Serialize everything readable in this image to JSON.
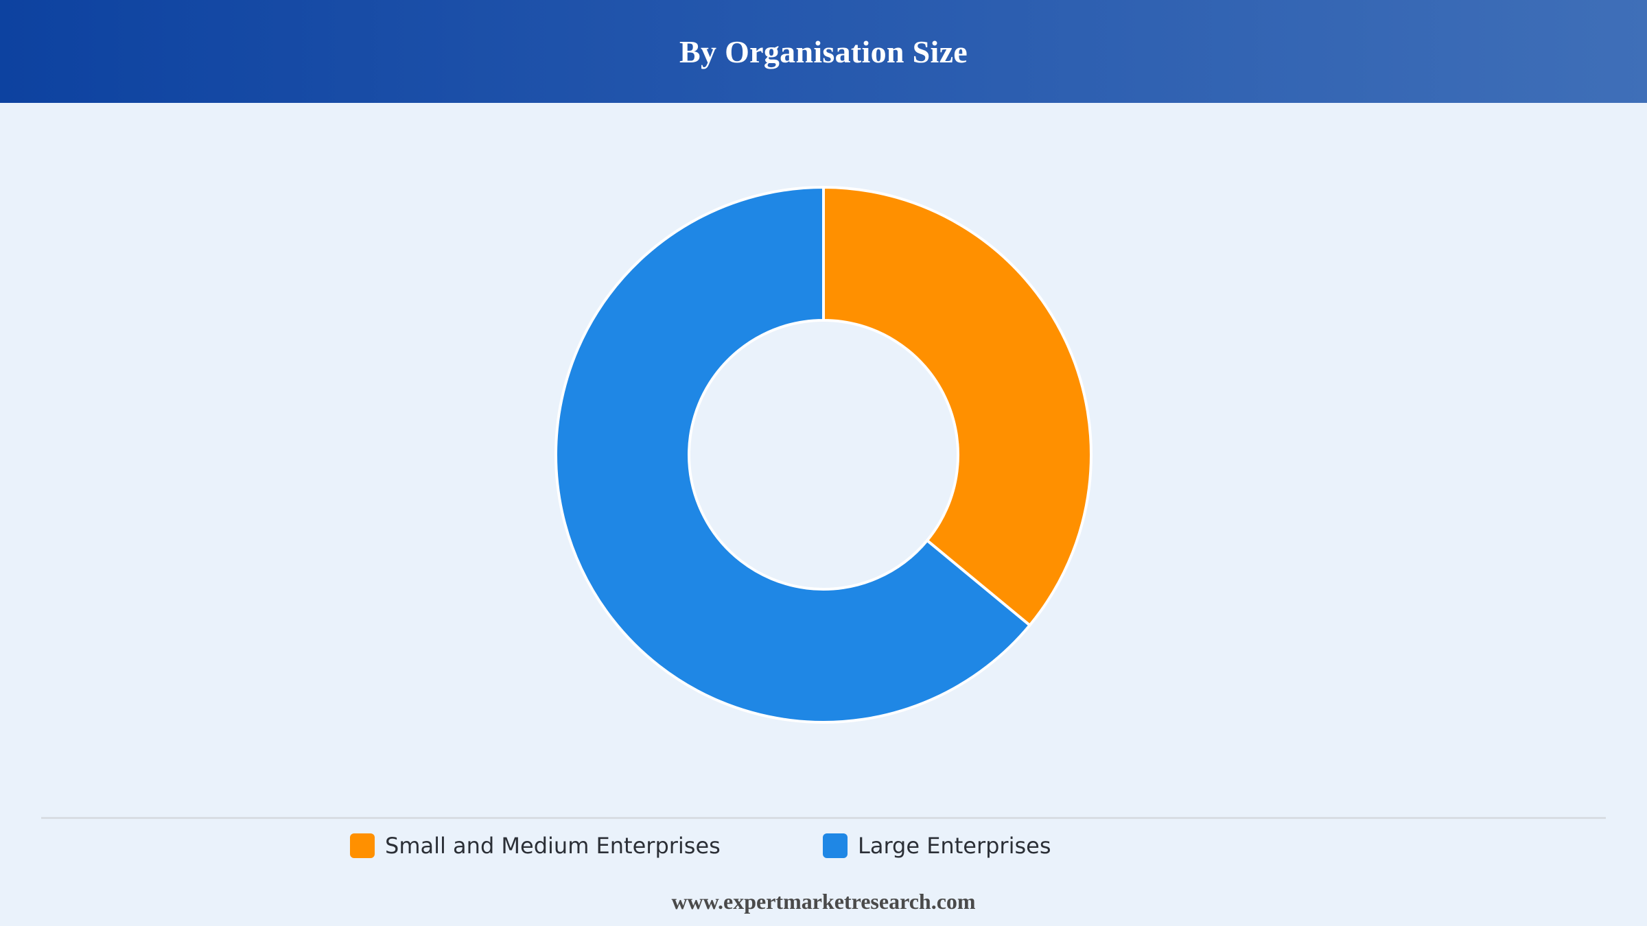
{
  "header": {
    "title": "By Organisation Size"
  },
  "chart_data": {
    "type": "pie",
    "title": "By Organisation Size",
    "donut": true,
    "categories": [
      "Small and Medium Enterprises",
      "Large Enterprises"
    ],
    "values": [
      36,
      64
    ],
    "colors": [
      "#ff9000",
      "#1f87e5"
    ],
    "legend_position": "bottom"
  },
  "legend": {
    "items": [
      {
        "label": "Small and Medium Enterprises",
        "color": "#ff9000"
      },
      {
        "label": "Large Enterprises",
        "color": "#1f87e5"
      }
    ]
  },
  "footer": {
    "source": "www.expertmarketresearch.com"
  }
}
